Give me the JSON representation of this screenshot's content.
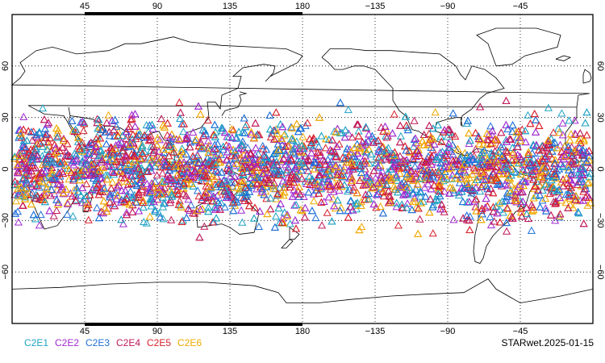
{
  "map": {
    "projection": "equirectangular",
    "central_longitude": 180,
    "lon_range": [
      0,
      360
    ],
    "lat_range": [
      -90,
      90
    ],
    "grid": "dotted",
    "lon_ticks": [
      "45",
      "90",
      "135",
      "180",
      "−135",
      "−90",
      "−45"
    ],
    "lat_ticks": [
      "60",
      "30",
      "0",
      "−30",
      "−60"
    ],
    "marker_shape": "open-triangle",
    "data_band_lat": [
      -40,
      40
    ]
  },
  "legend": {
    "items": [
      {
        "label": "C2E1",
        "color": "#1fa3c4"
      },
      {
        "label": "C2E2",
        "color": "#a02ad0"
      },
      {
        "label": "C2E3",
        "color": "#1f6fd8"
      },
      {
        "label": "C2E4",
        "color": "#c0185a"
      },
      {
        "label": "C2E5",
        "color": "#d8202a"
      },
      {
        "label": "C2E6",
        "color": "#f0a800"
      }
    ]
  },
  "footer": {
    "label": "STARwet.2025-01-15"
  }
}
